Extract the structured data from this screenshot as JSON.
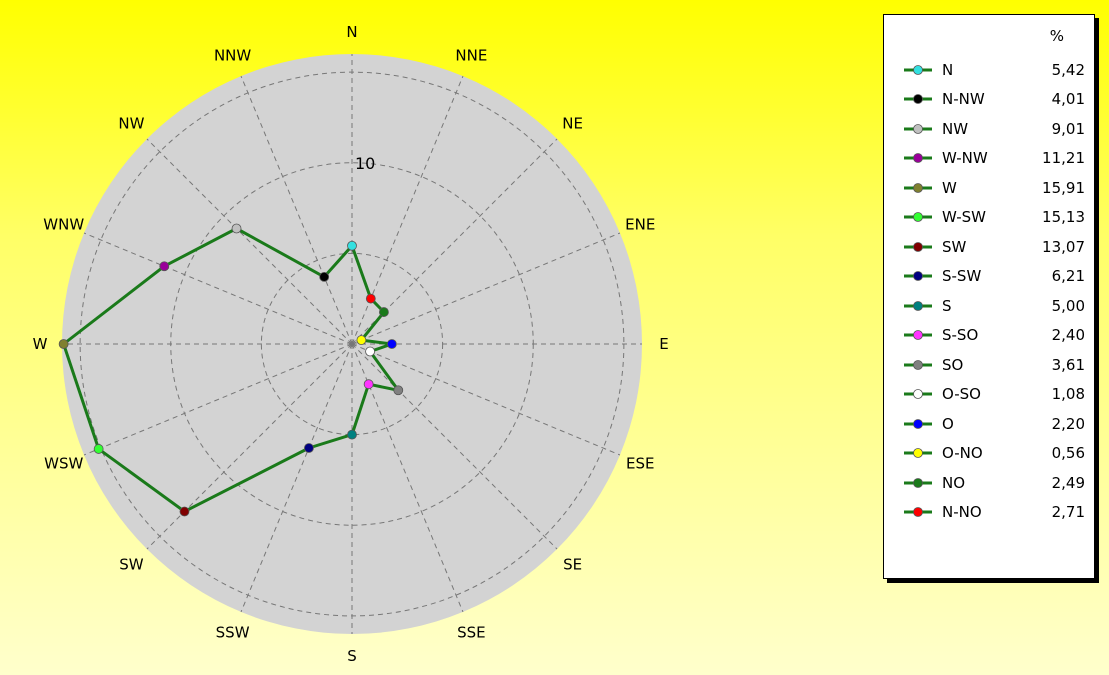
{
  "chart_data": {
    "type": "radar",
    "directions": [
      "N",
      "NNE",
      "NE",
      "ENE",
      "E",
      "ESE",
      "SE",
      "SSE",
      "S",
      "SSW",
      "SW",
      "WSW",
      "W",
      "WNW",
      "NW",
      "NNW"
    ],
    "ring_label": "10",
    "rmax": 16,
    "rings": [
      5,
      10,
      15
    ],
    "line_color": "#1a7a1a",
    "plot_bg": "#d3d3d3",
    "series": [
      {
        "name": "N",
        "value": 5.42,
        "color": "#33e0e0"
      },
      {
        "name": "N-NW",
        "value": 4.01,
        "color": "#000000"
      },
      {
        "name": "NW",
        "value": 9.01,
        "color": "#c0c0c0"
      },
      {
        "name": "W-NW",
        "value": 11.21,
        "color": "#990099"
      },
      {
        "name": "W",
        "value": 15.91,
        "color": "#808030"
      },
      {
        "name": "W-SW",
        "value": 15.13,
        "color": "#33ff33"
      },
      {
        "name": "SW",
        "value": 13.07,
        "color": "#800000"
      },
      {
        "name": "S-SW",
        "value": 6.21,
        "color": "#000080"
      },
      {
        "name": "S",
        "value": 5.0,
        "color": "#008080"
      },
      {
        "name": "S-SO",
        "value": 2.4,
        "color": "#ff33ff"
      },
      {
        "name": "SO",
        "value": 3.61,
        "color": "#808080"
      },
      {
        "name": "O-SO",
        "value": 1.08,
        "color": "#ffffff"
      },
      {
        "name": "O",
        "value": 2.2,
        "color": "#0000ff"
      },
      {
        "name": "O-NO",
        "value": 0.56,
        "color": "#ffff00"
      },
      {
        "name": "NO",
        "value": 2.49,
        "color": "#1a7a1a"
      },
      {
        "name": "N-NO",
        "value": 2.71,
        "color": "#ff0000"
      }
    ],
    "value_display": [
      "5,42",
      "4,01",
      "9,01",
      "11,21",
      "15,91",
      "15,13",
      "13,07",
      "6,21",
      "5,00",
      "2,40",
      "3,61",
      "1,08",
      "2,20",
      "0,56",
      "2,49",
      "2,71"
    ],
    "legend_header": "%",
    "legend_position": "right"
  }
}
